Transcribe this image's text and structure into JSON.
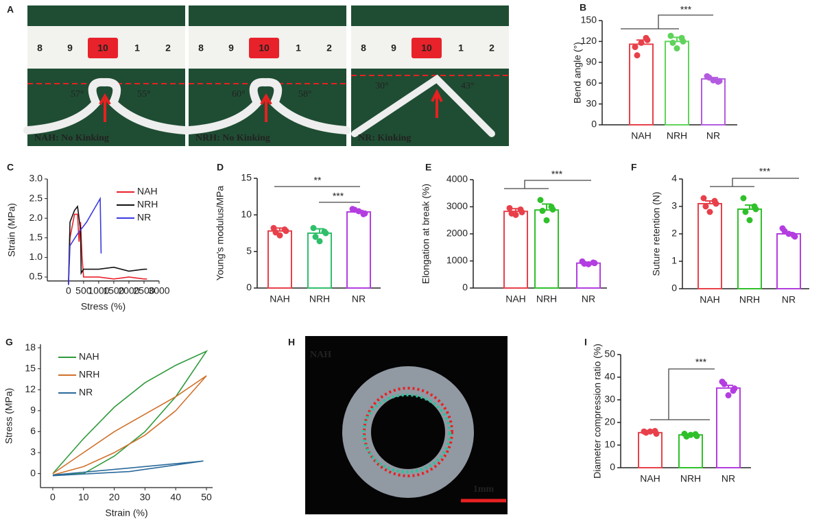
{
  "images": [
    {
      "panel": "A",
      "ruler": [
        "8",
        "9",
        "10",
        "1",
        "2"
      ],
      "angles": [
        "57°",
        "55°"
      ],
      "label": "NAH: No Kinking"
    },
    {
      "ruler": [
        "8",
        "9",
        "10",
        "1",
        "2"
      ],
      "angles": [
        "60°",
        "58°"
      ],
      "label": "NRH: No Kinking"
    },
    {
      "ruler": [
        "8",
        "9",
        "10",
        "1",
        "2"
      ],
      "angles": [
        "30°",
        "43°"
      ],
      "label": "NR: Kinking"
    },
    {
      "panel": "H",
      "label": "NAH",
      "scale": "1mm"
    }
  ],
  "chart_data": [
    {
      "type": "bar",
      "panel": "B",
      "ylabel": "Bend angle (°)",
      "categories": [
        "NAH",
        "NRH",
        "NR"
      ],
      "colors": [
        "#e8404a",
        "#5fd35a",
        "#b35be0"
      ],
      "values": [
        116,
        120,
        66
      ],
      "errors": [
        6,
        6,
        2
      ],
      "points": [
        [
          112,
          122,
          118,
          100,
          125
        ],
        [
          128,
          120,
          110,
          118,
          125
        ],
        [
          70,
          63,
          64,
          68,
          62
        ]
      ],
      "ylim": [
        0,
        150
      ],
      "yticks": [
        0,
        30,
        60,
        90,
        120,
        150
      ],
      "annotations": [
        "***"
      ]
    },
    {
      "type": "line",
      "panel": "C",
      "xlabel": "Stress (%)",
      "ylabel": "Strain (MPa)",
      "xlim": [
        -700,
        3000
      ],
      "xticks": [
        0,
        500,
        1000,
        1500,
        2000,
        2500,
        3000
      ],
      "ylim": [
        0.4,
        3.0
      ],
      "yticks": [
        0.5,
        {
          "value": 1,
          "label": "1.0"
        },
        1.5,
        {
          "value": 2,
          "label": "2.0"
        },
        2.5,
        {
          "value": 3,
          "label": "3.0"
        }
      ],
      "series": [
        {
          "name": "NAH",
          "color": "#e8202a",
          "x": [
            0,
            50,
            200,
            300,
            350,
            400,
            450,
            500,
            1000,
            1500,
            2000,
            2500,
            2600
          ],
          "values": [
            0.3,
            1.5,
            2.1,
            2.1,
            1.4,
            1.9,
            1.0,
            0.5,
            0.5,
            0.45,
            0.5,
            0.45,
            0.45
          ]
        },
        {
          "name": "NRH",
          "color": "#111111",
          "x": [
            0,
            50,
            200,
            300,
            400,
            420,
            500,
            1000,
            1500,
            2000,
            2500,
            2600
          ],
          "values": [
            0.3,
            1.9,
            2.2,
            2.3,
            1.7,
            0.6,
            0.7,
            0.7,
            0.75,
            0.65,
            0.7,
            0.7
          ]
        },
        {
          "name": "NR",
          "color": "#3a3ae0",
          "x": [
            0,
            50,
            300,
            600,
            900,
            1050,
            1080
          ],
          "values": [
            0.3,
            1.3,
            1.6,
            1.9,
            2.3,
            2.5,
            1.1
          ]
        }
      ]
    },
    {
      "type": "bar",
      "panel": "D",
      "ylabel": "Young's modulus/MPa",
      "categories": [
        "NAH",
        "NRH",
        "NR"
      ],
      "colors": [
        "#e8404a",
        "#2fbf6a",
        "#b33de0"
      ],
      "values": [
        7.8,
        7.5,
        10.4
      ],
      "errors": [
        0.4,
        0.6,
        0.2
      ],
      "points": [
        [
          8.2,
          7.8,
          7.2,
          7.6,
          8.0
        ],
        [
          8.2,
          7.5,
          6.4,
          7.0,
          7.7
        ],
        [
          10.8,
          10.2,
          10.5,
          10.7,
          10.1
        ]
      ],
      "ylim": [
        0,
        15
      ],
      "yticks": [
        0,
        5,
        10,
        15
      ],
      "annotations": [
        "**",
        "***"
      ]
    },
    {
      "type": "bar",
      "panel": "E",
      "ylabel": "Elongation at break (%)",
      "categories": [
        "NAH",
        "NRH",
        "NR"
      ],
      "colors": [
        "#e8404a",
        "#2fc02a",
        "#b33de0"
      ],
      "values": [
        2830,
        2880,
        920
      ],
      "errors": [
        100,
        220,
        30
      ],
      "points": [
        [
          2950,
          2800,
          2700,
          2750,
          2900
        ],
        [
          3250,
          2900,
          2500,
          2850,
          3000
        ],
        [
          980,
          920,
          880,
          900,
          940
        ]
      ],
      "ylim": [
        0,
        4000
      ],
      "yticks": [
        0,
        1000,
        2000,
        3000,
        4000
      ],
      "annotations": [
        "***"
      ]
    },
    {
      "type": "bar",
      "panel": "F",
      "ylabel": "Suture retention (N)",
      "categories": [
        "NAH",
        "NRH",
        "NR"
      ],
      "colors": [
        "#e8404a",
        "#2fc02a",
        "#b33de0"
      ],
      "values": [
        3.1,
        2.9,
        2.0
      ],
      "errors": [
        0.1,
        0.15,
        0.05
      ],
      "points": [
        [
          3.3,
          3.1,
          2.8,
          3.0,
          3.2
        ],
        [
          3.3,
          2.9,
          2.5,
          2.8,
          3.0
        ],
        [
          2.2,
          1.9,
          2.0,
          2.1,
          1.95
        ]
      ],
      "ylim": [
        0,
        4
      ],
      "yticks": [
        0,
        1,
        2,
        3,
        4
      ],
      "annotations": [
        "***"
      ]
    },
    {
      "type": "line",
      "panel": "G",
      "xlabel": "Strain (%)",
      "ylabel": "Stress (MPa)",
      "xlim": [
        -4,
        52
      ],
      "xticks": [
        0,
        10,
        20,
        30,
        40,
        50
      ],
      "ylim": [
        -2,
        18.5
      ],
      "yticks": [
        0,
        3,
        6,
        9,
        12,
        15,
        18
      ],
      "series": [
        {
          "name": "NAH",
          "color": "#2e9a3a",
          "x": [
            0,
            10,
            20,
            30,
            40,
            50,
            40,
            30,
            20,
            10,
            0
          ],
          "values": [
            0,
            5,
            9.5,
            13,
            15.5,
            17.5,
            11,
            6,
            2.5,
            0,
            -0.2
          ]
        },
        {
          "name": "NRH",
          "color": "#d0702a",
          "x": [
            0,
            10,
            20,
            30,
            40,
            50,
            40,
            30,
            20,
            10,
            0
          ],
          "values": [
            0,
            3,
            6,
            8.5,
            11,
            14,
            9,
            5.5,
            3,
            1,
            -0.2
          ]
        },
        {
          "name": "NR",
          "color": "#2a6a9a",
          "x": [
            0,
            25,
            49,
            25,
            0
          ],
          "values": [
            -0.2,
            0.8,
            1.8,
            0.3,
            -0.3
          ]
        }
      ]
    },
    {
      "type": "bar",
      "panel": "I",
      "ylabel": "Diameter compression ratio (%)",
      "categories": [
        "NAH",
        "NRH",
        "NR"
      ],
      "colors": [
        "#e8404a",
        "#2fc02a",
        "#b33de0"
      ],
      "values": [
        15.5,
        14.5,
        35.2
      ],
      "errors": [
        0.3,
        0.4,
        1.2
      ],
      "points": [
        [
          16,
          15,
          16,
          15.5,
          16.2
        ],
        [
          15,
          14,
          14.5,
          13.8,
          14.8
        ],
        [
          38,
          35,
          32,
          37,
          34
        ]
      ],
      "ylim": [
        0,
        50
      ],
      "yticks": [
        0,
        10,
        20,
        30,
        40,
        50
      ],
      "annotations": [
        "***"
      ]
    }
  ]
}
